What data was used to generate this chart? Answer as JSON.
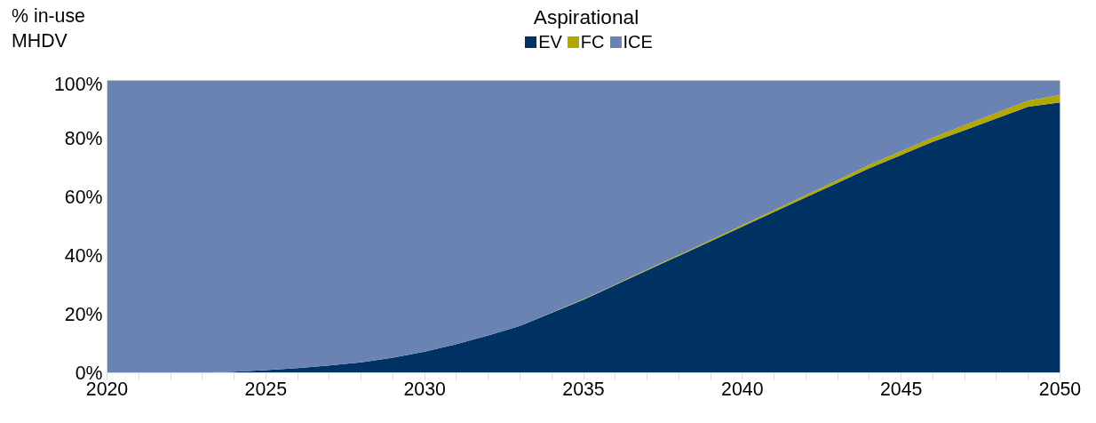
{
  "chart_data": {
    "type": "area",
    "stacked": true,
    "title": "Aspirational",
    "ylabel": "% in-use MHDV",
    "x": [
      2020,
      2021,
      2022,
      2023,
      2024,
      2025,
      2026,
      2027,
      2028,
      2029,
      2030,
      2031,
      2032,
      2033,
      2034,
      2035,
      2036,
      2037,
      2038,
      2039,
      2040,
      2041,
      2042,
      2043,
      2044,
      2045,
      2046,
      2047,
      2048,
      2049,
      2050
    ],
    "series": [
      {
        "name": "EV",
        "color": "#003263",
        "values": [
          0,
          0,
          0,
          0.1,
          0.4,
          0.9,
          1.6,
          2.5,
          3.6,
          5.2,
          7.2,
          9.8,
          12.8,
          16,
          20.5,
          25,
          30,
          35,
          40,
          45,
          50,
          55,
          60,
          65,
          70,
          74.5,
          79,
          83,
          87,
          91,
          92.5
        ]
      },
      {
        "name": "FC",
        "color": "#b3a800",
        "values": [
          0,
          0,
          0,
          0,
          0,
          0,
          0,
          0,
          0,
          0,
          0,
          0,
          0,
          0,
          0.1,
          0.2,
          0.2,
          0.3,
          0.3,
          0.4,
          0.5,
          0.6,
          0.8,
          0.9,
          1.1,
          1.3,
          1.5,
          1.7,
          1.9,
          2.1,
          2.5
        ]
      },
      {
        "name": "ICE",
        "color": "#6b83b3",
        "values": [
          100,
          100,
          100,
          99.9,
          99.6,
          99.1,
          98.4,
          97.5,
          96.4,
          94.8,
          92.8,
          90.2,
          87.2,
          84,
          79.4,
          74.8,
          69.8,
          64.7,
          59.7,
          54.6,
          49.5,
          44.4,
          39.2,
          34.1,
          28.9,
          24.2,
          19.5,
          15.3,
          11.1,
          6.9,
          5
        ]
      }
    ],
    "xlim": [
      2020,
      2050
    ],
    "ylim": [
      0,
      100
    ],
    "xticks": [
      2020,
      {
        "value": 2021,
        "label": null
      },
      {
        "value": 2022,
        "label": null
      },
      {
        "value": 2023,
        "label": null
      },
      {
        "value": 2024,
        "label": null
      },
      2025,
      {
        "value": 2026,
        "label": null
      },
      {
        "value": 2027,
        "label": null
      },
      {
        "value": 2028,
        "label": null
      },
      {
        "value": 2029,
        "label": null
      },
      2030,
      {
        "value": 2031,
        "label": null
      },
      {
        "value": 2032,
        "label": null
      },
      {
        "value": 2033,
        "label": null
      },
      {
        "value": 2034,
        "label": null
      },
      2035,
      {
        "value": 2036,
        "label": null
      },
      {
        "value": 2037,
        "label": null
      },
      {
        "value": 2038,
        "label": null
      },
      {
        "value": 2039,
        "label": null
      },
      2040,
      {
        "value": 2041,
        "label": null
      },
      {
        "value": 2042,
        "label": null
      },
      {
        "value": 2043,
        "label": null
      },
      {
        "value": 2044,
        "label": null
      },
      2045,
      {
        "value": 2046,
        "label": null
      },
      {
        "value": 2047,
        "label": null
      },
      {
        "value": 2048,
        "label": null
      },
      {
        "value": 2049,
        "label": null
      },
      2050
    ],
    "yticks": [
      {
        "value": 0,
        "label": "0%"
      },
      {
        "value": 20,
        "label": "20%"
      },
      {
        "value": 40,
        "label": "40%"
      },
      {
        "value": 60,
        "label": "60%"
      },
      {
        "value": 80,
        "label": "80%"
      },
      {
        "value": 100,
        "label": "100%"
      }
    ],
    "grid": false,
    "legend": "top"
  }
}
